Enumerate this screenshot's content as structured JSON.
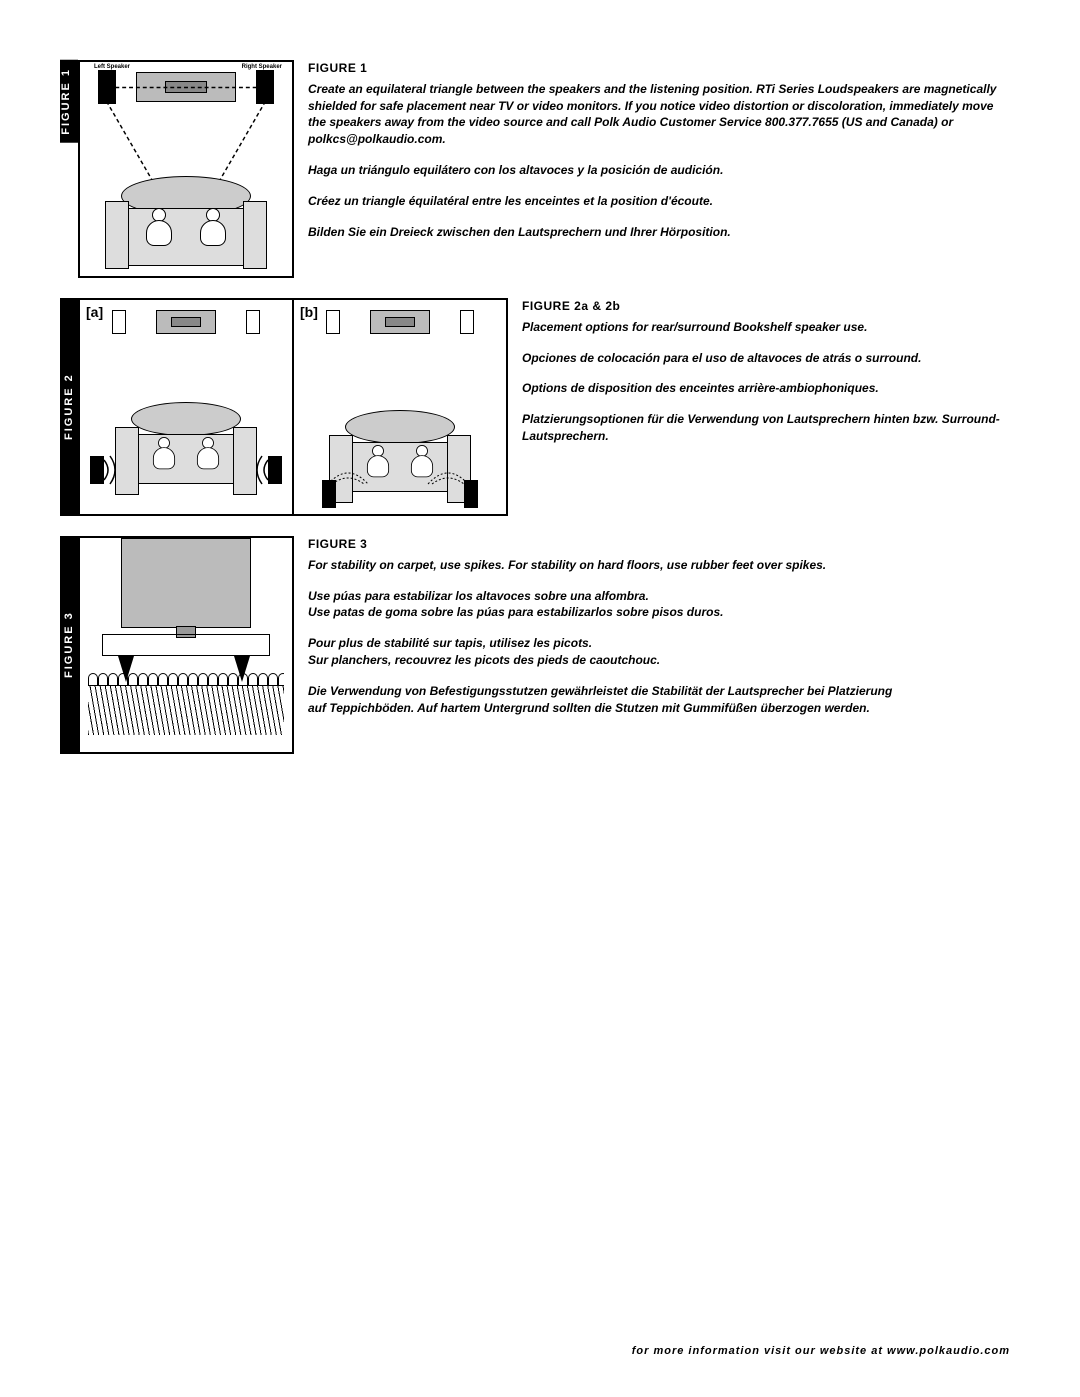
{
  "figures": {
    "fig1": {
      "label": "FIGURE 1",
      "title": "FIGURE 1",
      "spk_left_label": "Left Speaker",
      "spk_right_label": "Right Speaker",
      "en": "Create an equilateral triangle between the speakers and the listening position. RTi Series Loudspeakers are magnetically shielded for safe placement near TV or video monitors. If you notice video distortion or discoloration, immediately move the speakers away from the video source and call Polk Audio Customer Service 800.377.7655 (US and Canada) or polkcs@polkaudio.com.",
      "es": "Haga un triángulo equilátero con los altavoces y la posición de audición.",
      "fr": "Créez un triangle équilatéral entre les enceintes et la position d'écoute.",
      "de": "Bilden Sie ein Dreieck zwischen den Lautsprechern und Ihrer Hörposition."
    },
    "fig2": {
      "label": "FIGURE 2",
      "title": "FIGURE 2a & 2b",
      "sub_a": "[a]",
      "sub_b": "[b]",
      "en": "Placement options for rear/surround Bookshelf speaker use.",
      "es": "Opciones de colocación para el uso de altavoces de atrás o surround.",
      "fr": "Options de disposition des enceintes arrière-ambiophoniques.",
      "de": "Platzierungsoptionen für die Verwendung von Lautsprechern hinten bzw. Surround-Lautsprechern."
    },
    "fig3": {
      "label": "FIGURE 3",
      "title": "FIGURE 3",
      "en": "For stability on carpet, use spikes. For stability on hard floors, use rubber feet over spikes.",
      "es1": "Use púas para estabilizar los altavoces sobre una alfombra.",
      "es2": "Use patas de goma sobre las púas para estabilizarlos sobre pisos duros.",
      "fr1": "Pour plus de stabilité sur tapis, utilisez les picots.",
      "fr2": "Sur planchers, recouvrez les picots des pieds de caoutchouc.",
      "de1": "Die Verwendung von Befestigungsstutzen gewährleistet die Stabilität der Lautsprecher bei Platzierung",
      "de2": "auf Teppichböden. Auf hartem Untergrund sollten die Stutzen mit Gummifüßen überzogen werden."
    }
  },
  "footer": "for more information visit our website at www.polkaudio.com",
  "colors": {
    "black": "#000000",
    "white": "#ffffff",
    "fill_grey": "#bbbbbb",
    "light_grey": "#dddddd"
  }
}
